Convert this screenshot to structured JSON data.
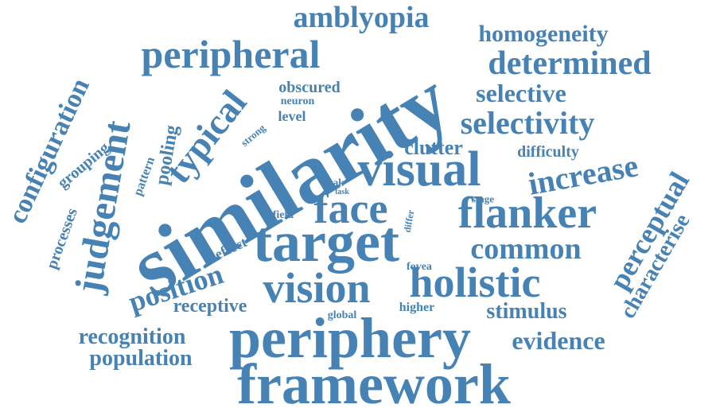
{
  "color": "#4682b4",
  "words": [
    {
      "text": "similarity"
    },
    {
      "text": "periphery"
    },
    {
      "text": "framework"
    },
    {
      "text": "target"
    },
    {
      "text": "visual"
    },
    {
      "text": "face"
    },
    {
      "text": "flanker"
    },
    {
      "text": "vision"
    },
    {
      "text": "holistic"
    },
    {
      "text": "peripheral"
    },
    {
      "text": "judgement"
    },
    {
      "text": "typical"
    },
    {
      "text": "amblyopia"
    },
    {
      "text": "homogeneity"
    },
    {
      "text": "determined"
    },
    {
      "text": "selective"
    },
    {
      "text": "selectivity"
    },
    {
      "text": "increase"
    },
    {
      "text": "common"
    },
    {
      "text": "perceptual"
    },
    {
      "text": "characterise"
    },
    {
      "text": "stimulus"
    },
    {
      "text": "evidence"
    },
    {
      "text": "position"
    },
    {
      "text": "recognition"
    },
    {
      "text": "population"
    },
    {
      "text": "receptive"
    },
    {
      "text": "configuration"
    },
    {
      "text": "processes"
    },
    {
      "text": "grouping"
    },
    {
      "text": "pooling"
    },
    {
      "text": "pattern"
    },
    {
      "text": "clutter"
    },
    {
      "text": "difficulty"
    },
    {
      "text": "obscured"
    },
    {
      "text": "neuron"
    },
    {
      "text": "level"
    },
    {
      "text": "strong"
    },
    {
      "text": "weak"
    },
    {
      "text": "task"
    },
    {
      "text": "stage"
    },
    {
      "text": "field"
    },
    {
      "text": "differ"
    },
    {
      "text": "effect"
    },
    {
      "text": "fovea"
    },
    {
      "text": "higher"
    },
    {
      "text": "global"
    }
  ]
}
